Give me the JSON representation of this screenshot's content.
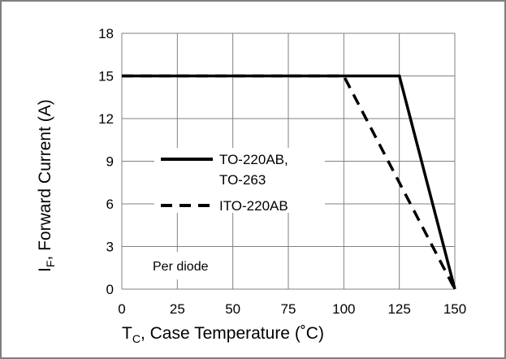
{
  "chart_data": {
    "type": "line",
    "title": "",
    "xlabel": {
      "main": "T",
      "sub": "C",
      "rest": ", Case Temperature (˚C)"
    },
    "ylabel": {
      "main": "I",
      "sub": "F",
      "rest": ", Forward Current (A)"
    },
    "xlim": [
      0,
      150
    ],
    "ylim": [
      0,
      18
    ],
    "xticks": [
      0,
      25,
      50,
      75,
      100,
      125,
      150
    ],
    "yticks": [
      0,
      3,
      6,
      9,
      12,
      15,
      18
    ],
    "grid": true,
    "legend_position": "center-left",
    "series": [
      {
        "name_lines": [
          "TO-220AB,",
          "TO-263"
        ],
        "style": "solid",
        "color": "#000000",
        "points": [
          [
            0,
            15
          ],
          [
            125,
            15
          ],
          [
            150,
            0
          ]
        ]
      },
      {
        "name_lines": [
          "ITO-220AB"
        ],
        "style": "dashed",
        "color": "#000000",
        "points": [
          [
            0,
            15
          ],
          [
            100,
            15
          ],
          [
            150,
            0
          ]
        ]
      }
    ],
    "annotations": [
      {
        "text": "Per diode",
        "position": "lower-left"
      }
    ]
  },
  "colors": {
    "grid": "#808080",
    "frame": "#7f7f7f",
    "line": "#000000"
  }
}
